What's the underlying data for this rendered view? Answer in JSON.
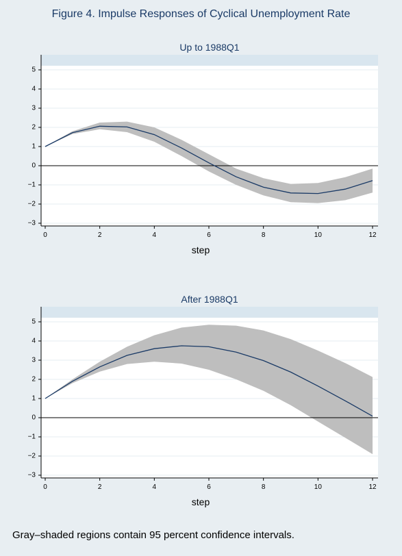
{
  "figure_title": "Figure 4.  Impulse Responses of Cyclical Unemployment Rate",
  "footnote": "Gray–shaded regions contain 95 percent confidence intervals.",
  "colors": {
    "background": "#e8eef2",
    "title": "#1a3a66",
    "line": "#1a3a66",
    "band": "#bebebe",
    "header_strip": "#d9e6ef",
    "zero_line": "#000000",
    "grid": "#e6ecf0"
  },
  "chart_data": [
    {
      "type": "line",
      "title": "Up to 1988Q1",
      "xlabel": "step",
      "ylabel": "",
      "xlim": [
        0,
        12
      ],
      "ylim": [
        -3,
        5
      ],
      "xticks": [
        0,
        2,
        4,
        6,
        8,
        10,
        12
      ],
      "yticks": [
        5,
        4,
        3,
        2,
        1,
        0,
        -1,
        -2,
        -3
      ],
      "grid": true,
      "x": [
        0,
        1,
        2,
        3,
        4,
        5,
        6,
        7,
        8,
        9,
        10,
        11,
        12
      ],
      "series": [
        {
          "values": [
            1.0,
            1.72,
            2.06,
            2.02,
            1.62,
            0.92,
            0.15,
            -0.58,
            -1.12,
            -1.42,
            -1.45,
            -1.22,
            -0.78
          ],
          "lower": [
            1.0,
            1.65,
            1.9,
            1.75,
            1.25,
            0.5,
            -0.3,
            -1.0,
            -1.55,
            -1.9,
            -1.95,
            -1.8,
            -1.4
          ],
          "upper": [
            1.0,
            1.8,
            2.25,
            2.3,
            2.0,
            1.35,
            0.6,
            -0.15,
            -0.65,
            -0.95,
            -0.9,
            -0.6,
            -0.15
          ]
        }
      ],
      "reference_line_y": 0
    },
    {
      "type": "line",
      "title": "After 1988Q1",
      "xlabel": "step",
      "ylabel": "",
      "xlim": [
        0,
        12
      ],
      "ylim": [
        -3,
        5
      ],
      "xticks": [
        0,
        2,
        4,
        6,
        8,
        10,
        12
      ],
      "yticks": [
        5,
        4,
        3,
        2,
        1,
        0,
        -1,
        -2,
        -3
      ],
      "grid": true,
      "x": [
        0,
        1,
        2,
        3,
        4,
        5,
        6,
        7,
        8,
        9,
        10,
        11,
        12
      ],
      "series": [
        {
          "values": [
            1.0,
            1.9,
            2.65,
            3.25,
            3.6,
            3.75,
            3.7,
            3.42,
            2.98,
            2.38,
            1.65,
            0.88,
            0.08
          ],
          "lower": [
            1.0,
            1.8,
            2.4,
            2.8,
            2.92,
            2.82,
            2.5,
            2.0,
            1.4,
            0.65,
            -0.2,
            -1.05,
            -1.9
          ],
          "upper": [
            1.0,
            2.0,
            2.92,
            3.7,
            4.3,
            4.7,
            4.85,
            4.8,
            4.55,
            4.1,
            3.5,
            2.85,
            2.12
          ]
        }
      ],
      "reference_line_y": 0
    }
  ]
}
